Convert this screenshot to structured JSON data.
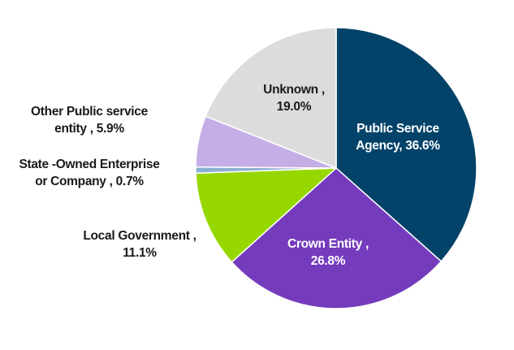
{
  "chart_data": {
    "type": "pie",
    "title": "",
    "start_angle_deg": 0,
    "direction": "clockwise",
    "slices": [
      {
        "name": "Public Service Agency",
        "value": 36.6,
        "color": "#03436a",
        "label_line1": "Public Service",
        "label_line2": "Agency, 36.6%"
      },
      {
        "name": "Crown Entity",
        "value": 26.8,
        "color": "#753bbd",
        "label_line1": "Crown Entity ,",
        "label_line2": "26.8%"
      },
      {
        "name": "Local Government",
        "value": 11.1,
        "color": "#97d700",
        "label_line1": "Local Government ,",
        "label_line2": "11.1%"
      },
      {
        "name": "State-Owned Enterprise or Company",
        "value": 0.7,
        "color": "#8ab0cf",
        "label_line1": "State -Owned Enterprise",
        "label_line2": "or Company , 0.7%"
      },
      {
        "name": "Other Public service entity",
        "value": 5.9,
        "color": "#c5ade6",
        "label_line1": "Other Public service",
        "label_line2": "entity , 5.9%"
      },
      {
        "name": "Unknown",
        "value": 19.0,
        "color": "#dcdcdc",
        "label_line1": "Unknown ,",
        "label_line2": "19.0%"
      }
    ],
    "legend": "none",
    "data_labels": true
  }
}
